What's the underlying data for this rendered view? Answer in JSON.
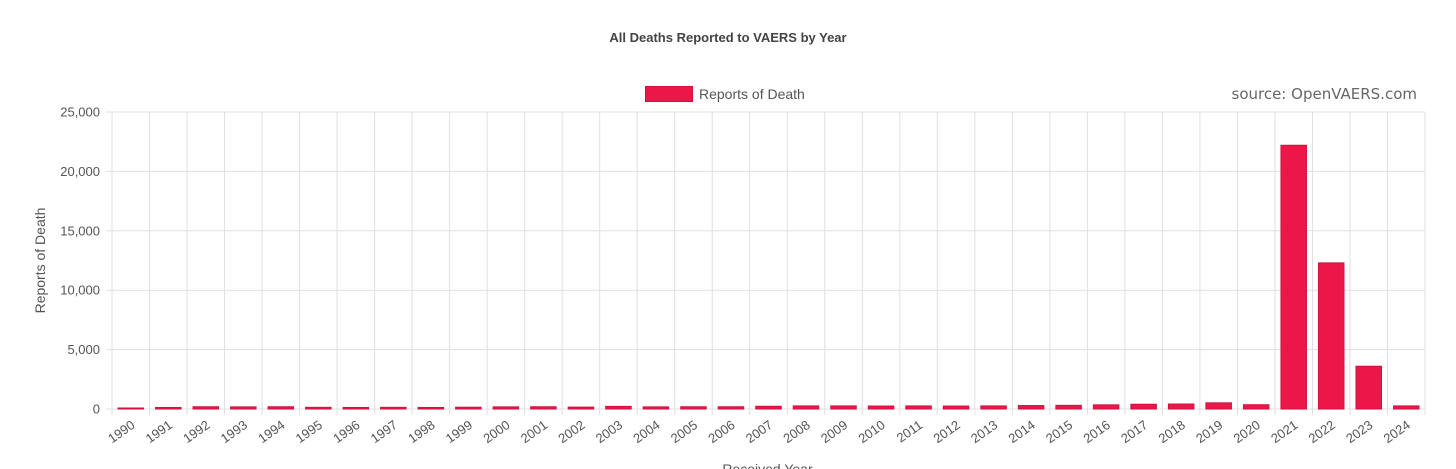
{
  "chart_data": {
    "type": "bar",
    "title": "All Deaths Reported to VAERS by Year",
    "source_note": "source: OpenVAERS.com",
    "xlabel": "Received Year",
    "ylabel": "Reports of Death",
    "ylim": [
      0,
      25000
    ],
    "yticks": [
      "0",
      "5,000",
      "10,000",
      "15,000",
      "20,000",
      "25,000"
    ],
    "grid": true,
    "legend_position": "top",
    "color": "#ea1748",
    "border_color": "#d11240",
    "categories": [
      "1990",
      "1991",
      "1992",
      "1993",
      "1994",
      "1995",
      "1996",
      "1997",
      "1998",
      "1999",
      "2000",
      "2001",
      "2002",
      "2003",
      "2004",
      "2005",
      "2006",
      "2007",
      "2008",
      "2009",
      "2010",
      "2011",
      "2012",
      "2013",
      "2014",
      "2015",
      "2016",
      "2017",
      "2018",
      "2019",
      "2020",
      "2021",
      "2022",
      "2023",
      "2024"
    ],
    "series": [
      {
        "name": "Reports of Death",
        "values": [
          40,
          130,
          190,
          180,
          190,
          140,
          130,
          140,
          130,
          150,
          180,
          190,
          160,
          220,
          180,
          190,
          190,
          230,
          260,
          260,
          250,
          260,
          250,
          260,
          290,
          310,
          350,
          400,
          420,
          520,
          360,
          22200,
          12300,
          3600,
          260
        ]
      }
    ]
  }
}
